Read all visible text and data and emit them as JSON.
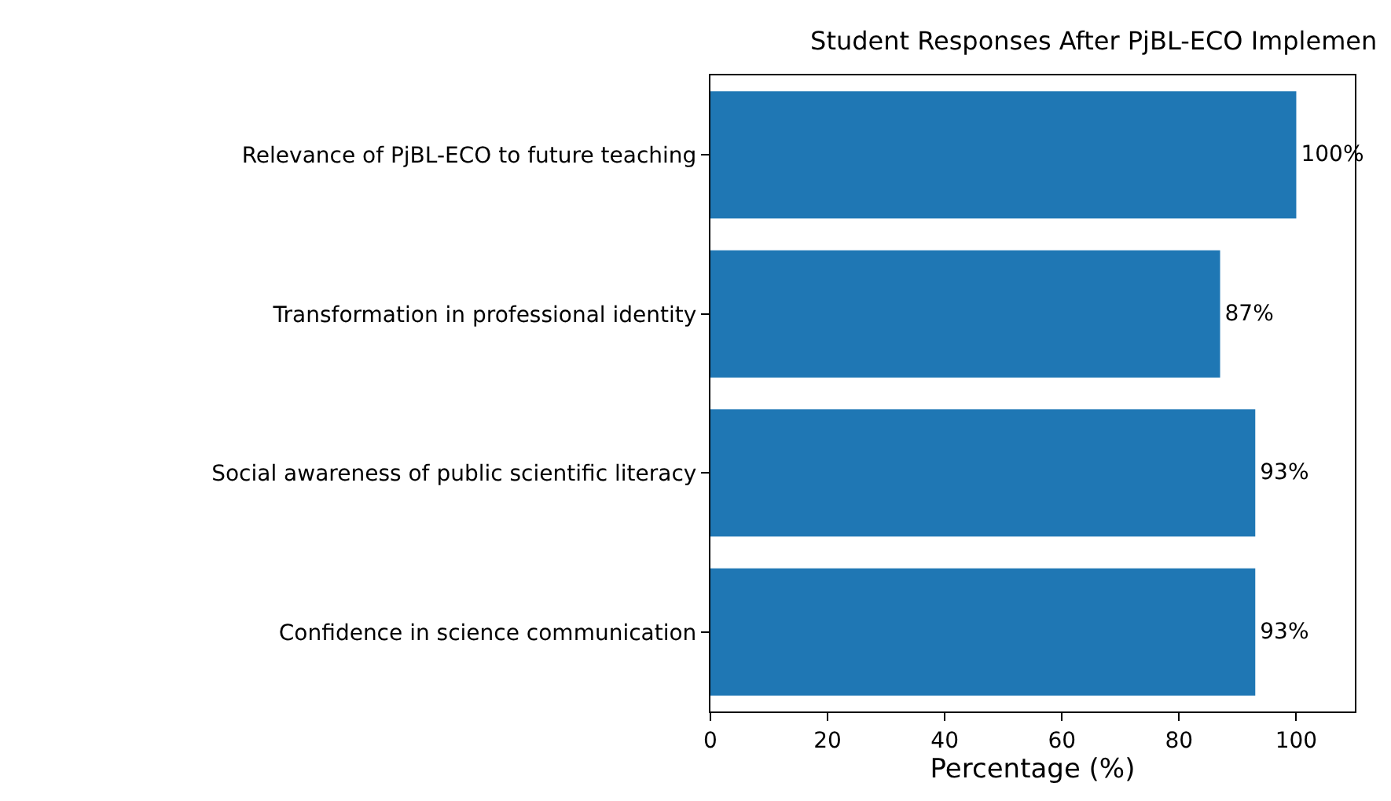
{
  "chart_data": {
    "type": "bar",
    "orientation": "horizontal",
    "title": "Student Responses After PjBL-ECO Implemen",
    "xlabel": "Percentage (%)",
    "categories": [
      "Relevance of PjBL-ECO to future teaching",
      "Transformation in professional identity",
      "Social awareness of public scientific literacy",
      "Confidence in science communication"
    ],
    "values": [
      100,
      87,
      93,
      93
    ],
    "value_labels": [
      "100%",
      "87%",
      "93%",
      "93%"
    ],
    "color": "#1f77b4",
    "xlim": [
      0,
      110
    ],
    "xticks": [
      0,
      20,
      40,
      60,
      80,
      100
    ],
    "grid": false
  }
}
